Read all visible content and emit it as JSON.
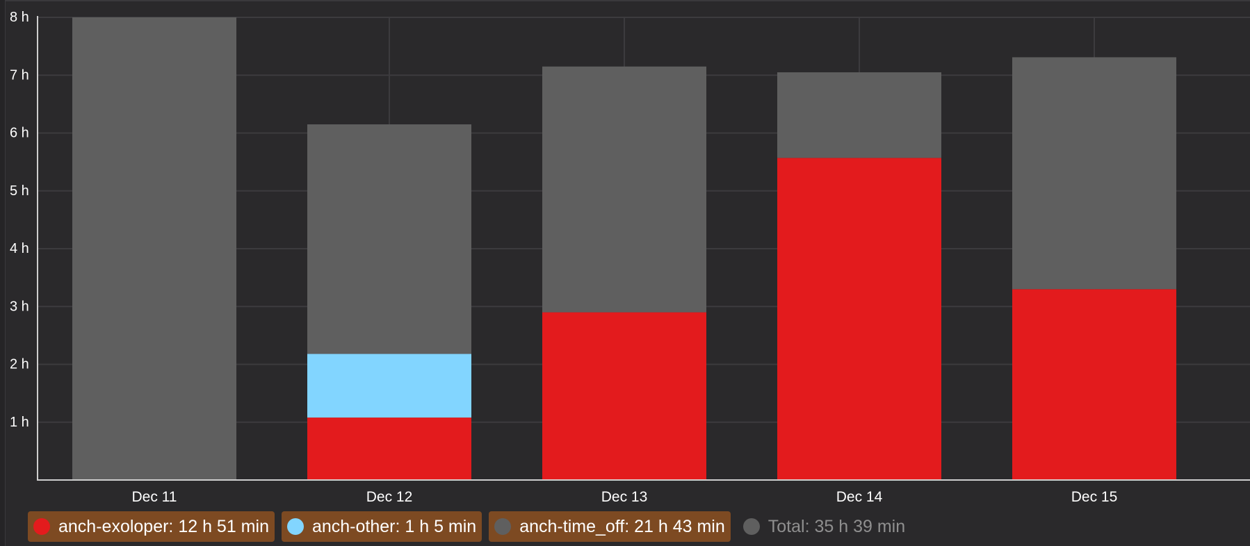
{
  "chart_data": {
    "type": "bar",
    "stacked": true,
    "categories": [
      "Dec 11",
      "Dec 12",
      "Dec 13",
      "Dec 14",
      "Dec 15"
    ],
    "series": [
      {
        "name": "anch-exoloper",
        "color": "#e31b1d",
        "values": [
          0,
          1.08,
          2.9,
          5.57,
          3.3
        ]
      },
      {
        "name": "anch-other",
        "color": "#82d5ff",
        "values": [
          0,
          1.1,
          0,
          0,
          0
        ]
      },
      {
        "name": "anch-time_off",
        "color": "#5f5f5f",
        "values": [
          8.0,
          3.97,
          4.25,
          1.48,
          4.01
        ]
      }
    ],
    "ylim": [
      0,
      8
    ],
    "yticks": [
      "1 h",
      "2 h",
      "3 h",
      "4 h",
      "5 h",
      "6 h",
      "7 h",
      "8 h"
    ],
    "grid": true,
    "legend_position": "bottom"
  },
  "legend": [
    {
      "label": "anch-exoloper: 12 h 51 min",
      "color": "#e31b1d",
      "style": "badge"
    },
    {
      "label": "anch-other: 1 h 5 min",
      "color": "#82d5ff",
      "style": "badge"
    },
    {
      "label": "anch-time_off: 21 h 43 min",
      "color": "#5f5f5f",
      "style": "badge"
    },
    {
      "label": "Total: 35 h 39 min",
      "color": "#5f5f5f",
      "style": "plain"
    }
  ]
}
